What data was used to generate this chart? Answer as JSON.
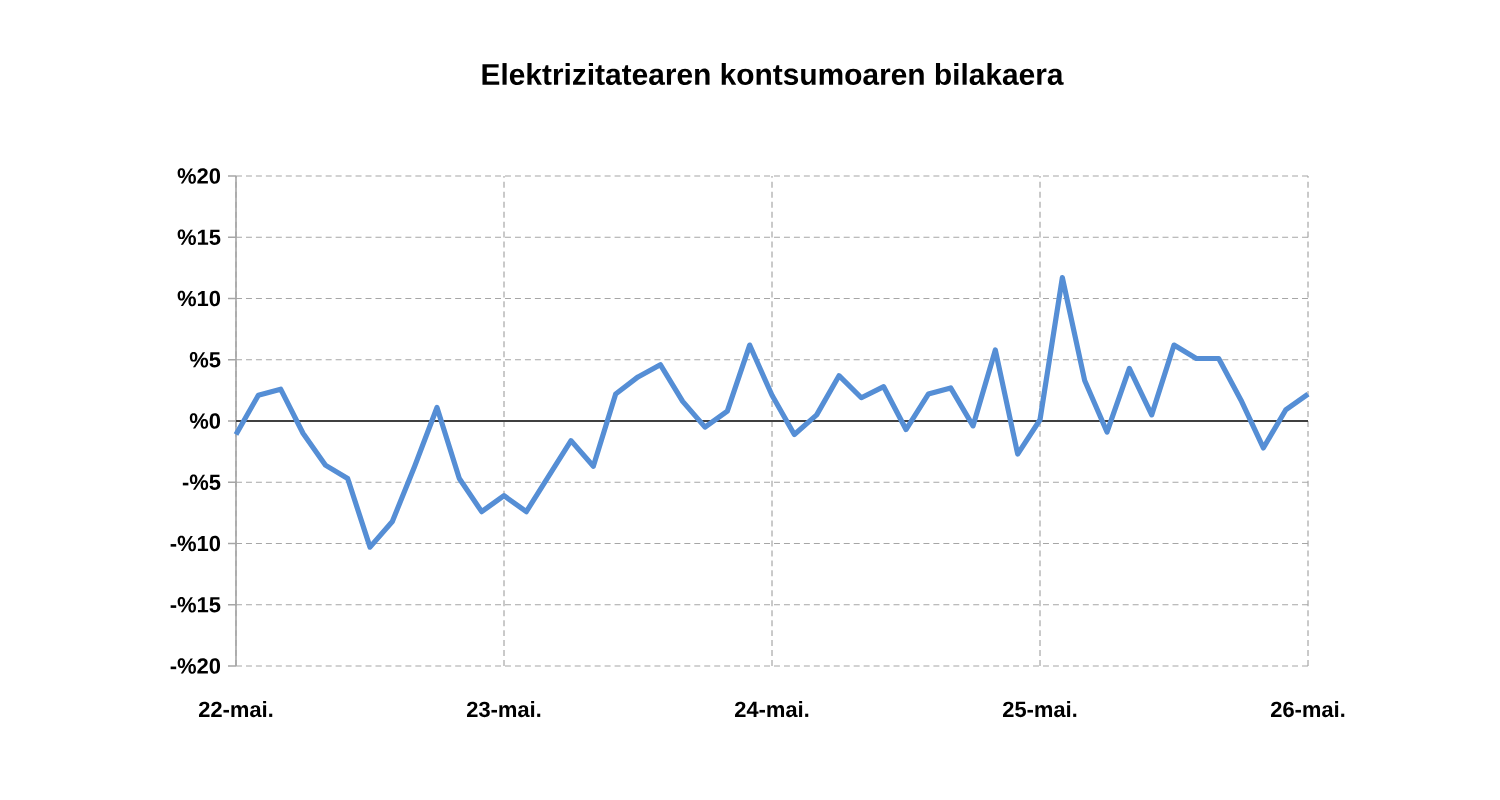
{
  "chart_data": {
    "type": "line",
    "title": "Elektrizitatearen kontsumoaren bilakaera",
    "categories": [
      "22-mai.",
      null,
      null,
      null,
      null,
      null,
      null,
      null,
      null,
      null,
      null,
      null,
      "23-mai.",
      null,
      null,
      null,
      null,
      null,
      null,
      null,
      null,
      null,
      null,
      null,
      "24-mai.",
      null,
      null,
      null,
      null,
      null,
      null,
      null,
      null,
      null,
      null,
      null,
      "25-mai.",
      null,
      null,
      null,
      null,
      null,
      null,
      null,
      null,
      null,
      null,
      null,
      "26-mai."
    ],
    "series": [
      {
        "color": "#558ed5",
        "values": [
          -1.1,
          2.1,
          2.6,
          -1.0,
          -3.6,
          -4.7,
          -10.3,
          -8.2,
          -3.7,
          1.1,
          -4.7,
          -7.4,
          -6.1,
          -7.4,
          -4.5,
          -1.6,
          -3.7,
          2.2,
          3.6,
          4.6,
          1.6,
          -0.5,
          0.8,
          6.2,
          2.1,
          -1.1,
          0.5,
          3.7,
          1.9,
          2.8,
          -0.7,
          2.2,
          2.7,
          -0.4,
          5.8,
          -2.7,
          0.1,
          11.7,
          3.3,
          -0.9,
          4.3,
          0.5,
          6.2,
          5.1,
          5.1,
          1.7,
          -2.2,
          0.9,
          2.2
        ]
      }
    ],
    "ylim": [
      -20,
      20
    ],
    "yticks": [
      {
        "value": -20,
        "label": "-%20"
      },
      {
        "value": -15,
        "label": "-%15"
      },
      {
        "value": -10,
        "label": "-%10"
      },
      {
        "value": -5,
        "label": "-%5"
      },
      {
        "value": 0,
        "label": "%0"
      },
      {
        "value": 5,
        "label": "%5"
      },
      {
        "value": 10,
        "label": "%10"
      },
      {
        "value": 15,
        "label": "%15"
      },
      {
        "value": 20,
        "label": "%20"
      }
    ],
    "grid": true,
    "marker": "none",
    "line_style": "solid"
  }
}
